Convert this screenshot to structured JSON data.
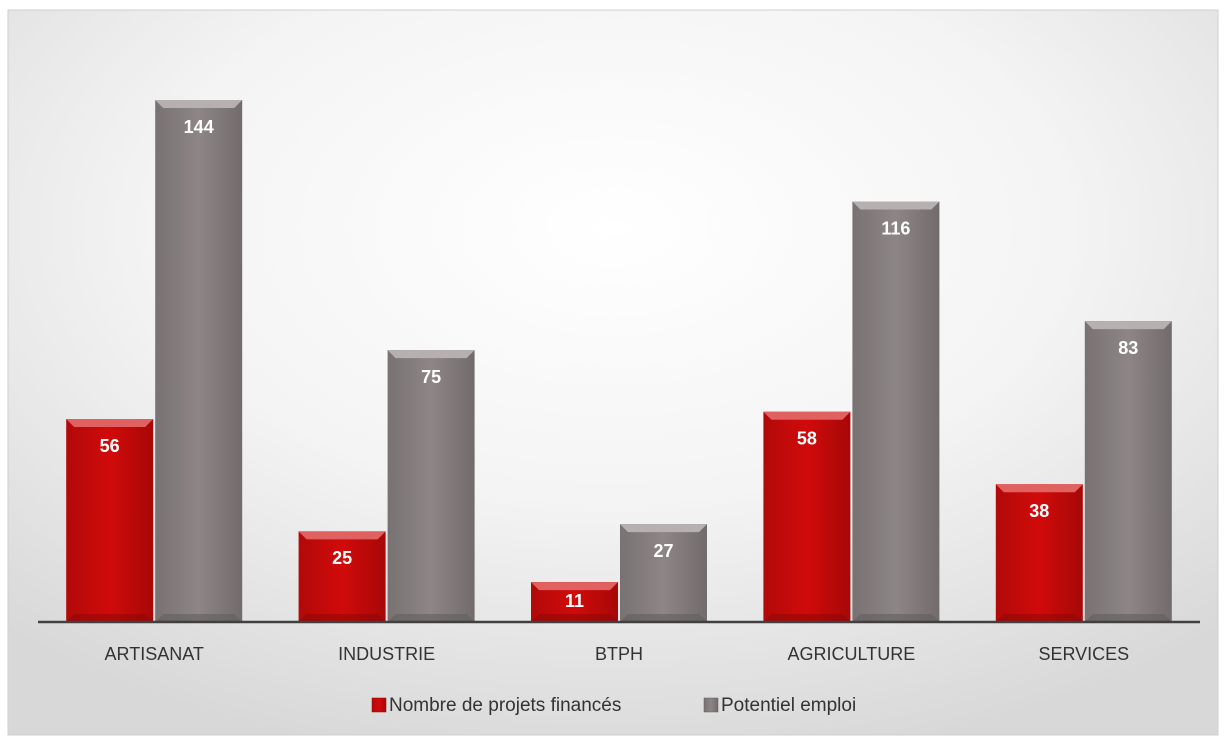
{
  "chart_data": {
    "type": "bar",
    "categories": [
      "ARTISANAT",
      "INDUSTRIE",
      "BTPH",
      "AGRICULTURE",
      "SERVICES"
    ],
    "series": [
      {
        "name": "Nombre de projets financés",
        "color": "#d10a0a",
        "values": [
          56,
          25,
          11,
          58,
          38
        ]
      },
      {
        "name": "Potentiel emploi",
        "color": "#8e8686",
        "values": [
          144,
          75,
          27,
          116,
          83
        ]
      }
    ],
    "ylim": [
      0,
      160
    ],
    "grid": false,
    "legend": "bottom"
  }
}
